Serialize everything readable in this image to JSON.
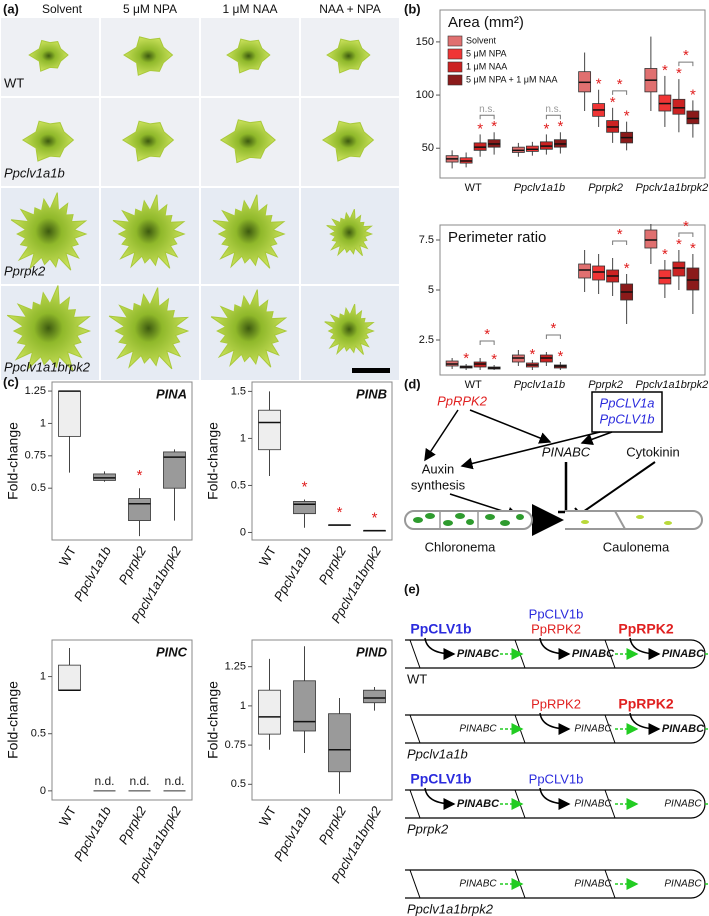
{
  "figure": {
    "a": {
      "label": "(a)",
      "columns": [
        "Solvent",
        "5 μM NPA",
        "1 μM NAA",
        "NAA + NPA"
      ],
      "rows": [
        "WT",
        "Ppclv1a1b",
        "Pprpk2",
        "Ppclv1a1brpk2"
      ]
    },
    "b": {
      "label": "(b)"
    },
    "c": {
      "label": "(c)"
    },
    "d": {
      "label": "(d)",
      "regulator_red": "PpRPK2",
      "regulator_blue": [
        "PpCLV1a",
        "PpCLV1b"
      ],
      "auxin": [
        "Auxin",
        "synthesis"
      ],
      "target": "PINABC",
      "cytokinin": "Cytokinin",
      "cells": [
        "Chloronema",
        "Caulonema"
      ]
    },
    "e": {
      "label": "(e)",
      "rows": [
        {
          "genotype": "WT",
          "cells": [
            {
              "regulators": [
                {
                  "text": "PpCLV1b",
                  "color": "#2b2bdd",
                  "strong": true
                }
              ],
              "target": {
                "text": "PINABC",
                "strong": true
              }
            },
            {
              "regulators": [
                {
                  "text": "PpCLV1b",
                  "color": "#2b2bdd",
                  "strong": false
                },
                {
                  "text": "PpRPK2",
                  "color": "#e02020",
                  "strong": false
                }
              ],
              "target": {
                "text": "PINABC",
                "strong": true
              }
            },
            {
              "regulators": [
                {
                  "text": "PpRPK2",
                  "color": "#e02020",
                  "strong": true
                }
              ],
              "target": {
                "text": "PINABC",
                "strong": true
              }
            }
          ]
        },
        {
          "genotype": "Ppclv1a1b",
          "cells": [
            {
              "regulators": [],
              "target": {
                "text": "PINABC",
                "strong": false
              }
            },
            {
              "regulators": [
                {
                  "text": "PpRPK2",
                  "color": "#e02020",
                  "strong": false
                }
              ],
              "target": {
                "text": "PINABC",
                "strong": false
              }
            },
            {
              "regulators": [
                {
                  "text": "PpRPK2",
                  "color": "#e02020",
                  "strong": true
                }
              ],
              "target": {
                "text": "PINABC",
                "strong": true
              }
            }
          ]
        },
        {
          "genotype": "Pprpk2",
          "cells": [
            {
              "regulators": [
                {
                  "text": "PpCLV1b",
                  "color": "#2b2bdd",
                  "strong": true
                }
              ],
              "target": {
                "text": "PINABC",
                "strong": true
              }
            },
            {
              "regulators": [
                {
                  "text": "PpCLV1b",
                  "color": "#2b2bdd",
                  "strong": false
                }
              ],
              "target": {
                "text": "PINABC",
                "strong": false
              }
            },
            {
              "regulators": [],
              "target": {
                "text": "PINABC",
                "strong": false
              }
            }
          ]
        },
        {
          "genotype": "Ppclv1a1brpk2",
          "cells": [
            {
              "regulators": [],
              "target": {
                "text": "PINABC",
                "strong": false
              }
            },
            {
              "regulators": [],
              "target": {
                "text": "PINABC",
                "strong": false
              }
            },
            {
              "regulators": [],
              "target": {
                "text": "PINABC",
                "strong": false
              }
            }
          ]
        }
      ]
    }
  },
  "chart_data": [
    {
      "type": "box",
      "title": "Area (mm²)",
      "categories": [
        "WT",
        "Ppclv1a1b",
        "Pprpk2",
        "Ppclv1a1brpk2"
      ],
      "ylim": [
        22,
        180
      ],
      "yticks": [
        50,
        100,
        150
      ],
      "legend": "upper left",
      "series": [
        {
          "name": "Solvent",
          "color": "#e07070",
          "values": [
            {
              "low": 31,
              "q1": 37,
              "median": 40,
              "q3": 43,
              "high": 48
            },
            {
              "low": 42,
              "q1": 46,
              "median": 48,
              "q3": 51,
              "high": 55
            },
            {
              "low": 85,
              "q1": 103,
              "median": 112,
              "q3": 122,
              "high": 140
            },
            {
              "low": 85,
              "q1": 103,
              "median": 114,
              "q3": 125,
              "high": 155
            }
          ]
        },
        {
          "name": "5 μM NPA",
          "color": "#f03535",
          "values": [
            {
              "low": 32,
              "q1": 36,
              "median": 38,
              "q3": 41,
              "high": 46
            },
            {
              "low": 43,
              "q1": 47,
              "median": 49,
              "q3": 52,
              "high": 56
            },
            {
              "low": 70,
              "q1": 80,
              "median": 86,
              "q3": 92,
              "high": 105
            },
            {
              "low": 70,
              "q1": 85,
              "median": 92,
              "q3": 100,
              "high": 118
            }
          ]
        },
        {
          "name": "1 μM NAA",
          "color": "#cc2222",
          "values": [
            {
              "low": 42,
              "q1": 48,
              "median": 51,
              "q3": 55,
              "high": 63
            },
            {
              "low": 44,
              "q1": 49,
              "median": 52,
              "q3": 56,
              "high": 63
            },
            {
              "low": 55,
              "q1": 65,
              "median": 70,
              "q3": 76,
              "high": 88
            },
            {
              "low": 65,
              "q1": 82,
              "median": 88,
              "q3": 96,
              "high": 115
            }
          ]
        },
        {
          "name": "5 μM NPA + 1 μM NAA",
          "color": "#8b1a1a",
          "values": [
            {
              "low": 44,
              "q1": 51,
              "median": 54,
              "q3": 58,
              "high": 65
            },
            {
              "low": 45,
              "q1": 51,
              "median": 54,
              "q3": 58,
              "high": 65
            },
            {
              "low": 48,
              "q1": 55,
              "median": 60,
              "q3": 65,
              "high": 75
            },
            {
              "low": 60,
              "q1": 73,
              "median": 78,
              "q3": 85,
              "high": 95
            }
          ]
        }
      ],
      "annotations": [
        {
          "text": "*",
          "category": 0,
          "series": 2,
          "color": "#e02020"
        },
        {
          "text": "*",
          "category": 0,
          "series": 3,
          "color": "#e02020"
        },
        {
          "text": "n.s.",
          "category": 0,
          "series": [
            2,
            3
          ],
          "color": "#999999"
        },
        {
          "text": "*",
          "category": 1,
          "series": 2,
          "color": "#e02020"
        },
        {
          "text": "*",
          "category": 1,
          "series": 3,
          "color": "#e02020"
        },
        {
          "text": "n.s.",
          "category": 1,
          "series": [
            2,
            3
          ],
          "color": "#999999"
        },
        {
          "text": "*",
          "category": 2,
          "series": 1,
          "color": "#e02020"
        },
        {
          "text": "*",
          "category": 2,
          "series": 2,
          "color": "#e02020"
        },
        {
          "text": "*",
          "category": 2,
          "series": 3,
          "color": "#e02020"
        },
        {
          "text": "*",
          "category": 2,
          "series": [
            2,
            3
          ],
          "color": "#e02020"
        },
        {
          "text": "*",
          "category": 3,
          "series": 1,
          "color": "#e02020"
        },
        {
          "text": "*",
          "category": 3,
          "series": 2,
          "color": "#e02020"
        },
        {
          "text": "*",
          "category": 3,
          "series": 3,
          "color": "#e02020"
        },
        {
          "text": "*",
          "category": 3,
          "series": [
            2,
            3
          ],
          "color": "#e02020"
        }
      ]
    },
    {
      "type": "box",
      "title": "Perimeter ratio",
      "categories": [
        "WT",
        "Ppclv1a1b",
        "Pprpk2",
        "Ppclv1a1brpk2"
      ],
      "ylim": [
        0.75,
        8.25
      ],
      "yticks": [
        2.5,
        5,
        7.5
      ],
      "series": [
        {
          "color": "#e07070",
          "values": [
            {
              "low": 1.05,
              "q1": 1.2,
              "median": 1.3,
              "q3": 1.45,
              "high": 1.6
            },
            {
              "low": 1.2,
              "q1": 1.4,
              "median": 1.6,
              "q3": 1.75,
              "high": 2.0
            },
            {
              "low": 4.9,
              "q1": 5.6,
              "median": 6.0,
              "q3": 6.3,
              "high": 7.0
            },
            {
              "low": 6.3,
              "q1": 7.1,
              "median": 7.5,
              "q3": 8.0,
              "high": 8.3
            }
          ]
        },
        {
          "color": "#f03535",
          "values": [
            {
              "low": 1.0,
              "q1": 1.1,
              "median": 1.15,
              "q3": 1.2,
              "high": 1.3
            },
            {
              "low": 1.0,
              "q1": 1.15,
              "median": 1.25,
              "q3": 1.35,
              "high": 1.5
            },
            {
              "low": 4.8,
              "q1": 5.5,
              "median": 5.9,
              "q3": 6.2,
              "high": 6.8
            },
            {
              "low": 4.6,
              "q1": 5.3,
              "median": 5.6,
              "q3": 6.0,
              "high": 6.5
            }
          ]
        },
        {
          "color": "#cc2222",
          "values": [
            {
              "low": 1.0,
              "q1": 1.15,
              "median": 1.3,
              "q3": 1.4,
              "high": 1.6
            },
            {
              "low": 1.2,
              "q1": 1.4,
              "median": 1.6,
              "q3": 1.75,
              "high": 1.9
            },
            {
              "low": 4.7,
              "q1": 5.4,
              "median": 5.7,
              "q3": 6.0,
              "high": 6.6
            },
            {
              "low": 5.0,
              "q1": 5.7,
              "median": 6.1,
              "q3": 6.4,
              "high": 7.0
            }
          ]
        },
        {
          "color": "#8b1a1a",
          "values": [
            {
              "low": 1.0,
              "q1": 1.05,
              "median": 1.1,
              "q3": 1.15,
              "high": 1.25
            },
            {
              "low": 1.0,
              "q1": 1.1,
              "median": 1.2,
              "q3": 1.25,
              "high": 1.4
            },
            {
              "low": 3.3,
              "q1": 4.5,
              "median": 4.9,
              "q3": 5.3,
              "high": 5.8
            },
            {
              "low": 3.8,
              "q1": 5.0,
              "median": 5.5,
              "q3": 6.1,
              "high": 6.8
            }
          ]
        }
      ],
      "annotations": [
        {
          "text": "*",
          "category": 0,
          "series": 1,
          "color": "#e02020"
        },
        {
          "text": "*",
          "category": 0,
          "series": 3,
          "color": "#e02020"
        },
        {
          "text": "*",
          "category": 0,
          "series": [
            2,
            3
          ],
          "color": "#e02020"
        },
        {
          "text": "*",
          "category": 1,
          "series": 1,
          "color": "#e02020"
        },
        {
          "text": "*",
          "category": 1,
          "series": 3,
          "color": "#e02020"
        },
        {
          "text": "*",
          "category": 1,
          "series": [
            2,
            3
          ],
          "color": "#e02020"
        },
        {
          "text": "*",
          "category": 2,
          "series": 3,
          "color": "#e02020"
        },
        {
          "text": "*",
          "category": 2,
          "series": [
            2,
            3
          ],
          "color": "#e02020"
        },
        {
          "text": "*",
          "category": 3,
          "series": 1,
          "color": "#e02020"
        },
        {
          "text": "*",
          "category": 3,
          "series": 2,
          "color": "#e02020"
        },
        {
          "text": "*",
          "category": 3,
          "series": 3,
          "color": "#e02020"
        },
        {
          "text": "*",
          "category": 3,
          "series": [
            2,
            3
          ],
          "color": "#e02020"
        }
      ]
    },
    {
      "type": "box",
      "title": "PINA",
      "ylabel": "Fold-change",
      "categories": [
        "WT",
        "Ppclv1a1b",
        "Pprpk2",
        "Ppclv1a1brpk2"
      ],
      "ylim": [
        0.1,
        1.32
      ],
      "yticks": [
        0.5,
        0.75,
        1,
        1.25
      ],
      "colors": [
        "#eeeeee",
        "#9a9a9a",
        "#9a9a9a",
        "#9a9a9a"
      ],
      "series": [
        {
          "values": [
            {
              "low": 0.62,
              "q1": 0.9,
              "median": 1.25,
              "q3": 1.25,
              "high": 1.25
            },
            {
              "low": 0.55,
              "q1": 0.56,
              "median": 0.58,
              "q3": 0.61,
              "high": 0.63
            },
            {
              "low": 0.13,
              "q1": 0.25,
              "median": 0.38,
              "q3": 0.42,
              "high": 0.5
            },
            {
              "low": 0.25,
              "q1": 0.5,
              "median": 0.74,
              "q3": 0.78,
              "high": 0.8
            }
          ]
        }
      ],
      "annotations": [
        {
          "text": "*",
          "category": 2,
          "color": "#e02020"
        }
      ]
    },
    {
      "type": "box",
      "title": "PINB",
      "ylabel": "Fold-change",
      "categories": [
        "WT",
        "Ppclv1a1b",
        "Pprpk2",
        "Ppclv1a1brpk2"
      ],
      "ylim": [
        -0.08,
        1.6
      ],
      "yticks": [
        0,
        0.5,
        1,
        1.5
      ],
      "colors": [
        "#eeeeee",
        "#9a9a9a",
        "#9a9a9a",
        "#9a9a9a"
      ],
      "series": [
        {
          "values": [
            {
              "low": 0.6,
              "q1": 0.88,
              "median": 1.17,
              "q3": 1.3,
              "high": 1.5
            },
            {
              "low": 0.05,
              "q1": 0.2,
              "median": 0.3,
              "q3": 0.33,
              "high": 0.35
            },
            {
              "low": 0.08,
              "q1": 0.08,
              "median": 0.08,
              "q3": 0.08,
              "high": 0.08
            },
            {
              "low": 0.02,
              "q1": 0.02,
              "median": 0.02,
              "q3": 0.02,
              "high": 0.02
            }
          ]
        }
      ],
      "annotations": [
        {
          "text": "*",
          "category": 1,
          "color": "#e02020"
        },
        {
          "text": "*",
          "category": 2,
          "color": "#e02020"
        },
        {
          "text": "*",
          "category": 3,
          "color": "#e02020"
        }
      ]
    },
    {
      "type": "box",
      "title": "PINC",
      "ylabel": "Fold-change",
      "categories": [
        "WT",
        "Ppclv1a1b",
        "Pprpk2",
        "Ppclv1a1brpk2"
      ],
      "ylim": [
        -0.08,
        1.32
      ],
      "yticks": [
        0,
        0.5,
        1
      ],
      "colors": [
        "#eeeeee",
        "#9a9a9a",
        "#9a9a9a",
        "#9a9a9a"
      ],
      "series": [
        {
          "values": [
            {
              "low": 0.88,
              "q1": 0.88,
              "median": 0.88,
              "q3": 1.1,
              "high": 1.25
            },
            null,
            null,
            null
          ]
        }
      ],
      "annotations": [
        {
          "text": "n.d.",
          "category": 1,
          "color": "#222222"
        },
        {
          "text": "n.d.",
          "category": 2,
          "color": "#222222"
        },
        {
          "text": "n.d.",
          "category": 3,
          "color": "#222222"
        }
      ]
    },
    {
      "type": "box",
      "title": "PIND",
      "ylabel": "Fold-change",
      "categories": [
        "WT",
        "Ppclv1a1b",
        "Pprpk2",
        "Ppclv1a1brpk2"
      ],
      "ylim": [
        0.4,
        1.42
      ],
      "yticks": [
        0.5,
        0.75,
        1,
        1.25
      ],
      "colors": [
        "#eeeeee",
        "#9a9a9a",
        "#9a9a9a",
        "#9a9a9a"
      ],
      "series": [
        {
          "values": [
            {
              "low": 0.72,
              "q1": 0.82,
              "median": 0.93,
              "q3": 1.1,
              "high": 1.3
            },
            {
              "low": 0.7,
              "q1": 0.84,
              "median": 0.9,
              "q3": 1.16,
              "high": 1.38
            },
            {
              "low": 0.44,
              "q1": 0.58,
              "median": 0.72,
              "q3": 0.95,
              "high": 1.05
            },
            {
              "low": 0.97,
              "q1": 1.02,
              "median": 1.05,
              "q3": 1.1,
              "high": 1.12
            }
          ]
        }
      ],
      "annotations": []
    }
  ]
}
